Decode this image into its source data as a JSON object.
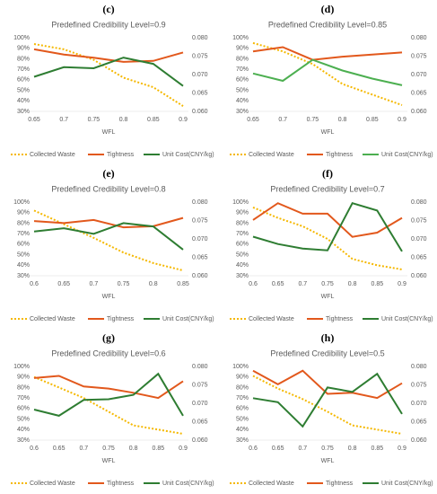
{
  "chart_data": [
    {
      "type": "line",
      "panel_label": "(c)",
      "title": "Predefined Credibility Level=0.9",
      "x_label": "WFL",
      "categories": [
        "0.65",
        "0.7",
        "0.75",
        "0.8",
        "0.85",
        "0.9"
      ],
      "series": [
        {
          "name": "Collected Waste",
          "color": "#f5b800",
          "style": "dotted",
          "values": [
            94,
            89,
            79,
            62,
            53,
            35
          ]
        },
        {
          "name": "Tightness",
          "color": "#e2581c",
          "style": "solid",
          "values": [
            89,
            84,
            81,
            77,
            78,
            86
          ]
        },
        {
          "name": "Unit Cost(CNY/kg)",
          "color": "#2e7d32",
          "style": "solid",
          "axis": "y2",
          "values": [
            0.0694,
            0.072,
            0.0717,
            0.0746,
            0.0729,
            0.0669
          ]
        }
      ],
      "ylim": [
        30,
        100
      ],
      "yticks": [
        {
          "value": 30,
          "label": "30%"
        },
        {
          "value": 40,
          "label": "40%"
        },
        {
          "value": 50,
          "label": "50%"
        },
        {
          "value": 60,
          "label": "60%"
        },
        {
          "value": 70,
          "label": "70%"
        },
        {
          "value": 80,
          "label": "80%"
        },
        {
          "value": 90,
          "label": "90%"
        },
        {
          "value": 100,
          "label": "100%"
        }
      ],
      "y2lim": [
        0.06,
        0.08
      ],
      "y2ticks": [
        {
          "value": 0.06,
          "label": "0.060"
        },
        {
          "value": 0.065,
          "label": "0.065"
        },
        {
          "value": 0.07,
          "label": "0.070"
        },
        {
          "value": 0.075,
          "label": "0.075"
        },
        {
          "value": 0.08,
          "label": "0.080"
        }
      ],
      "grid": false
    },
    {
      "type": "line",
      "panel_label": "(d)",
      "title": "Predefined Credibility Level=0.85",
      "x_label": "WFL",
      "categories": [
        "0.65",
        "0.7",
        "0.75",
        "0.8",
        "0.85",
        "0.9"
      ],
      "series": [
        {
          "name": "Collected Waste",
          "color": "#f5b800",
          "style": "dotted",
          "values": [
            95,
            87,
            75,
            56,
            46,
            36
          ]
        },
        {
          "name": "Tightness",
          "color": "#e2581c",
          "style": "solid",
          "values": [
            87,
            91,
            79,
            82,
            84,
            86
          ]
        },
        {
          "name": "Unit Cost(CNY/kg)",
          "color": "#4caf50",
          "style": "solid",
          "axis": "y2",
          "values": [
            0.0703,
            0.0683,
            0.074,
            0.0711,
            0.0689,
            0.0671
          ]
        }
      ],
      "ylim": [
        30,
        100
      ],
      "yticks": [
        {
          "value": 30,
          "label": "30%"
        },
        {
          "value": 40,
          "label": "40%"
        },
        {
          "value": 50,
          "label": "50%"
        },
        {
          "value": 60,
          "label": "60%"
        },
        {
          "value": 70,
          "label": "70%"
        },
        {
          "value": 80,
          "label": "80%"
        },
        {
          "value": 90,
          "label": "90%"
        },
        {
          "value": 100,
          "label": "100%"
        }
      ],
      "y2lim": [
        0.06,
        0.08
      ],
      "y2ticks": [
        {
          "value": 0.06,
          "label": "0.060"
        },
        {
          "value": 0.065,
          "label": "0.065"
        },
        {
          "value": 0.07,
          "label": "0.070"
        },
        {
          "value": 0.075,
          "label": "0.075"
        },
        {
          "value": 0.08,
          "label": "0.080"
        }
      ],
      "grid": false
    },
    {
      "type": "line",
      "panel_label": "(e)",
      "title": "Predefined Credibility Level=0.8",
      "x_label": "WFL",
      "categories": [
        "0.6",
        "0.65",
        "0.7",
        "0.75",
        "0.8",
        "0.85"
      ],
      "series": [
        {
          "name": "Collected Waste",
          "color": "#f5b800",
          "style": "dotted",
          "values": [
            92,
            79,
            66,
            52,
            42,
            35
          ]
        },
        {
          "name": "Tightness",
          "color": "#e2581c",
          "style": "solid",
          "values": [
            82,
            80,
            83,
            76,
            77,
            85
          ]
        },
        {
          "name": "Unit Cost(CNY/kg)",
          "color": "#2e7d32",
          "style": "solid",
          "axis": "y2",
          "values": [
            0.072,
            0.0729,
            0.0714,
            0.0743,
            0.0734,
            0.0671
          ]
        }
      ],
      "ylim": [
        30,
        100
      ],
      "yticks": [
        {
          "value": 30,
          "label": "30%"
        },
        {
          "value": 40,
          "label": "40%"
        },
        {
          "value": 50,
          "label": "50%"
        },
        {
          "value": 60,
          "label": "60%"
        },
        {
          "value": 70,
          "label": "70%"
        },
        {
          "value": 80,
          "label": "80%"
        },
        {
          "value": 90,
          "label": "90%"
        },
        {
          "value": 100,
          "label": "100%"
        }
      ],
      "y2lim": [
        0.06,
        0.08
      ],
      "y2ticks": [
        {
          "value": 0.06,
          "label": "0.060"
        },
        {
          "value": 0.065,
          "label": "0.065"
        },
        {
          "value": 0.07,
          "label": "0.070"
        },
        {
          "value": 0.075,
          "label": "0.075"
        },
        {
          "value": 0.08,
          "label": "0.080"
        }
      ],
      "grid": false
    },
    {
      "type": "line",
      "panel_label": "(f)",
      "title": "Predefined Credibility Level=0.7",
      "x_label": "WFL",
      "categories": [
        "0.6",
        "0.65",
        "0.7",
        "0.75",
        "0.8",
        "0.85",
        "0.9"
      ],
      "series": [
        {
          "name": "Collected Waste",
          "color": "#f5b800",
          "style": "dotted",
          "values": [
            95,
            85,
            77,
            65,
            46,
            40,
            36
          ]
        },
        {
          "name": "Tightness",
          "color": "#e2581c",
          "style": "solid",
          "values": [
            83,
            99,
            89,
            89,
            67,
            71,
            85
          ]
        },
        {
          "name": "Unit Cost(CNY/kg)",
          "color": "#2e7d32",
          "style": "solid",
          "axis": "y2",
          "values": [
            0.0706,
            0.0686,
            0.0674,
            0.0669,
            0.0797,
            0.0777,
            0.0666
          ]
        }
      ],
      "ylim": [
        30,
        100
      ],
      "yticks": [
        {
          "value": 30,
          "label": "30%"
        },
        {
          "value": 40,
          "label": "40%"
        },
        {
          "value": 50,
          "label": "50%"
        },
        {
          "value": 60,
          "label": "60%"
        },
        {
          "value": 70,
          "label": "70%"
        },
        {
          "value": 80,
          "label": "80%"
        },
        {
          "value": 90,
          "label": "90%"
        },
        {
          "value": 100,
          "label": "100%"
        }
      ],
      "y2lim": [
        0.06,
        0.08
      ],
      "y2ticks": [
        {
          "value": 0.06,
          "label": "0.060"
        },
        {
          "value": 0.065,
          "label": "0.065"
        },
        {
          "value": 0.07,
          "label": "0.070"
        },
        {
          "value": 0.075,
          "label": "0.075"
        },
        {
          "value": 0.08,
          "label": "0.080"
        }
      ],
      "grid": false
    },
    {
      "type": "line",
      "panel_label": "(g)",
      "title": "Predefined Credibility Level=0.6",
      "x_label": "WFL",
      "categories": [
        "0.6",
        "0.65",
        "0.7",
        "0.75",
        "0.8",
        "0.85",
        "0.9"
      ],
      "series": [
        {
          "name": "Collected Waste",
          "color": "#f5b800",
          "style": "dotted",
          "values": [
            90,
            80,
            70,
            57,
            44,
            40,
            36
          ]
        },
        {
          "name": "Tightness",
          "color": "#e2581c",
          "style": "solid",
          "values": [
            89,
            91,
            81,
            79,
            75,
            70,
            86
          ]
        },
        {
          "name": "Unit Cost(CNY/kg)",
          "color": "#2e7d32",
          "style": "solid",
          "axis": "y2",
          "values": [
            0.0683,
            0.0666,
            0.0709,
            0.0711,
            0.0723,
            0.078,
            0.0666
          ]
        }
      ],
      "ylim": [
        30,
        100
      ],
      "yticks": [
        {
          "value": 30,
          "label": "30%"
        },
        {
          "value": 40,
          "label": "40%"
        },
        {
          "value": 50,
          "label": "50%"
        },
        {
          "value": 60,
          "label": "60%"
        },
        {
          "value": 70,
          "label": "70%"
        },
        {
          "value": 80,
          "label": "80%"
        },
        {
          "value": 90,
          "label": "90%"
        },
        {
          "value": 100,
          "label": "100%"
        }
      ],
      "y2lim": [
        0.06,
        0.08
      ],
      "y2ticks": [
        {
          "value": 0.06,
          "label": "0.060"
        },
        {
          "value": 0.065,
          "label": "0.065"
        },
        {
          "value": 0.07,
          "label": "0.070"
        },
        {
          "value": 0.075,
          "label": "0.075"
        },
        {
          "value": 0.08,
          "label": "0.080"
        }
      ],
      "grid": false
    },
    {
      "type": "line",
      "panel_label": "(h)",
      "title": "Predefined Credibility Level=0.5",
      "x_label": "WFL",
      "categories": [
        "0.6",
        "0.65",
        "0.7",
        "0.75",
        "0.8",
        "0.85",
        "0.9"
      ],
      "series": [
        {
          "name": "Collected Waste",
          "color": "#f5b800",
          "style": "dotted",
          "values": [
            91,
            79,
            69,
            57,
            44,
            40,
            36
          ]
        },
        {
          "name": "Tightness",
          "color": "#e2581c",
          "style": "solid",
          "values": [
            96,
            83,
            96,
            74,
            75,
            70,
            84
          ]
        },
        {
          "name": "Unit Cost(CNY/kg)",
          "color": "#2e7d32",
          "style": "solid",
          "axis": "y2",
          "values": [
            0.0714,
            0.0703,
            0.0637,
            0.0743,
            0.0731,
            0.078,
            0.0671
          ]
        }
      ],
      "ylim": [
        30,
        100
      ],
      "yticks": [
        {
          "value": 30,
          "label": "30%"
        },
        {
          "value": 40,
          "label": "40%"
        },
        {
          "value": 50,
          "label": "50%"
        },
        {
          "value": 60,
          "label": "60%"
        },
        {
          "value": 70,
          "label": "70%"
        },
        {
          "value": 80,
          "label": "80%"
        },
        {
          "value": 90,
          "label": "90%"
        },
        {
          "value": 100,
          "label": "100%"
        }
      ],
      "y2lim": [
        0.06,
        0.08
      ],
      "y2ticks": [
        {
          "value": 0.06,
          "label": "0.060"
        },
        {
          "value": 0.065,
          "label": "0.065"
        },
        {
          "value": 0.07,
          "label": "0.070"
        },
        {
          "value": 0.075,
          "label": "0.075"
        },
        {
          "value": 0.08,
          "label": "0.080"
        }
      ],
      "grid": false
    }
  ]
}
